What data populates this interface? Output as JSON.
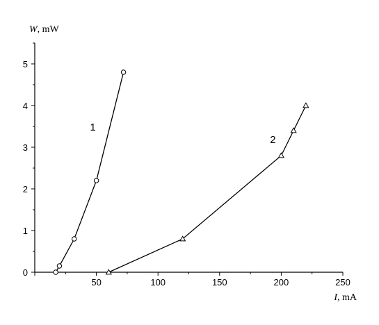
{
  "chart_data": {
    "type": "line",
    "xlabel": {
      "symbol": "I",
      "unit": ", mA"
    },
    "ylabel": {
      "symbol": "W",
      "unit": ", mW"
    },
    "xlim": [
      0,
      250
    ],
    "ylim": [
      0,
      5.5
    ],
    "xticks": [
      0,
      50,
      100,
      150,
      200,
      250
    ],
    "yticks": [
      0,
      1,
      2,
      3,
      4,
      5
    ],
    "grid": false,
    "series": [
      {
        "name": "1",
        "marker": "circle",
        "x": [
          17,
          20,
          32,
          50,
          72
        ],
        "y": [
          0.0,
          0.15,
          0.8,
          2.2,
          4.8
        ]
      },
      {
        "name": "2",
        "marker": "triangle",
        "x": [
          60,
          120,
          200,
          210,
          220
        ],
        "y": [
          0.0,
          0.8,
          2.8,
          3.4,
          4.0
        ]
      }
    ]
  }
}
